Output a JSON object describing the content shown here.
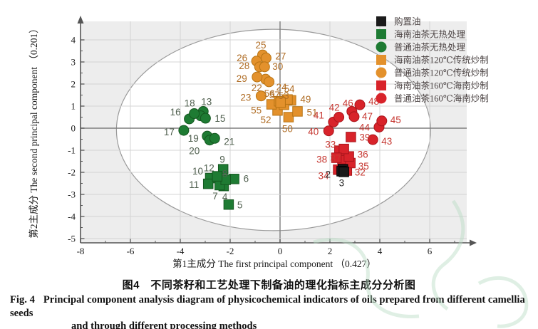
{
  "figure": {
    "caption_zh": "图4　不同茶籽和工艺处理下制备油的理化指标主成分分析图",
    "caption_en": {
      "prefix": "Fig. 4",
      "line1": "Principal component analysis diagram of physicochemical indicators of oils prepared from different camellia seeds",
      "line2": "and through different processing methods"
    }
  },
  "chart_data": {
    "type": "scatter",
    "title": "",
    "xlabel": "第1主成分 The first principal component （0.427）",
    "ylabel": "第2主成分 The second principal component （0.201）",
    "xlim": [
      -8,
      7.7
    ],
    "ylim": [
      -5.2,
      4.9
    ],
    "x_major_ticks": [
      -8,
      -6,
      -4,
      -2,
      0,
      2,
      4,
      6
    ],
    "x_minor_ticks": [
      -7,
      -5,
      -3,
      -1,
      1,
      3,
      5,
      7
    ],
    "y_major_ticks": [
      4,
      3,
      2,
      1,
      0,
      -1,
      -2,
      -3,
      -4,
      -5
    ],
    "grid": true,
    "legend_position": "top-right-inside",
    "confidence_ellipse": {
      "cx": -0.26,
      "cy": -0.08,
      "rx": 6.3,
      "ry": 4.56
    },
    "colors": {
      "plot_bg": "#ededed",
      "ellipse_fill": "#ffffff",
      "ellipse_stroke": "#9a9a9a",
      "grid": "#d4d4d4",
      "zero_line": "#7e7e7e",
      "axis": "#555555",
      "tick_label": "#1a1a1a",
      "legend_text": "#4c4444",
      "watermark": "#b9dcc4"
    },
    "series": [
      {
        "name": "购置油",
        "marker": "square",
        "color": "#1b1b1b",
        "edge": "#000000",
        "label_color": "#2a2a2a",
        "points": [
          {
            "id": 1,
            "x": 2.52,
            "y": -1.86,
            "label_hidden": true
          },
          {
            "id": 2,
            "x": 2.47,
            "y": -1.95,
            "dx": -23,
            "dy": 5
          },
          {
            "id": 3,
            "x": 2.56,
            "y": -1.98,
            "dx": -7,
            "dy": 16
          }
        ]
      },
      {
        "name": "海南油茶无热处理",
        "marker": "square",
        "color": "#1e7b33",
        "edge": "#14571f",
        "label_color": "#50604f",
        "points": [
          {
            "id": 4,
            "x": -2.26,
            "y": -2.62,
            "dx": -2,
            "dy": 16
          },
          {
            "id": 5,
            "x": -2.06,
            "y": -3.46,
            "dx": 12,
            "dy": 1
          },
          {
            "id": 6,
            "x": -1.84,
            "y": -2.3,
            "dx": 13,
            "dy": 0
          },
          {
            "id": 7,
            "x": -2.42,
            "y": -2.58,
            "dx": -10,
            "dy": 16
          },
          {
            "id": 8,
            "x": -2.18,
            "y": -2.34,
            "dx": -5,
            "dy": -8
          },
          {
            "id": 9,
            "x": -2.28,
            "y": -1.86,
            "dx": -5,
            "dy": -13
          },
          {
            "id": 10,
            "x": -2.8,
            "y": -2.26,
            "dx": -25,
            "dy": -9
          },
          {
            "id": 11,
            "x": -2.88,
            "y": -2.52,
            "dx": -27,
            "dy": 2
          },
          {
            "id": 12,
            "x": -2.52,
            "y": -2.18,
            "dx": -19,
            "dy": -11
          }
        ]
      },
      {
        "name": "普通油茶无热处理",
        "marker": "circle",
        "color": "#1e7b33",
        "edge": "#14571f",
        "label_color": "#50604f",
        "points": [
          {
            "id": 13,
            "x": -3.08,
            "y": 0.76,
            "dx": -3,
            "dy": -13
          },
          {
            "id": 14,
            "x": -3.18,
            "y": 0.56,
            "label_hidden": true
          },
          {
            "id": 15,
            "x": -2.99,
            "y": 0.45,
            "dx": 13,
            "dy": 1
          },
          {
            "id": 16,
            "x": -3.64,
            "y": 0.42,
            "dx": -27,
            "dy": -9
          },
          {
            "id": 17,
            "x": -3.86,
            "y": -0.1,
            "dx": -28,
            "dy": 3
          },
          {
            "id": 18,
            "x": -3.44,
            "y": 0.66,
            "dx": -14,
            "dy": -14
          },
          {
            "id": 19,
            "x": -2.92,
            "y": -0.36,
            "dx": -27,
            "dy": 4
          },
          {
            "id": 20,
            "x": -2.82,
            "y": -0.54,
            "dx": -29,
            "dy": 16
          },
          {
            "id": 21,
            "x": -2.62,
            "y": -0.46,
            "dx": 13,
            "dy": 5
          }
        ]
      },
      {
        "name": "海南油茶120℃传统炒制",
        "marker": "square",
        "color": "#e3912c",
        "edge": "#b87414",
        "label_color": "#b06e27",
        "points": [
          {
            "id": 49,
            "x": 0.44,
            "y": 1.26,
            "dx": 13,
            "dy": -1
          },
          {
            "id": 50,
            "x": 0.34,
            "y": 0.5,
            "dx": -9,
            "dy": 17
          },
          {
            "id": 51,
            "x": 0.7,
            "y": 0.76,
            "dx": 13,
            "dy": 2
          },
          {
            "id": 52,
            "x": -0.1,
            "y": 0.8,
            "dx": -24,
            "dy": 14
          },
          {
            "id": 53,
            "x": 0.16,
            "y": 1.06,
            "dx": -8,
            "dy": -12
          },
          {
            "id": 54,
            "x": 0.3,
            "y": 1.3,
            "dx": -5,
            "dy": -14
          },
          {
            "id": 55,
            "x": -0.34,
            "y": 1.08,
            "dx": -29,
            "dy": 9
          },
          {
            "id": 56,
            "x": -0.04,
            "y": 1.22,
            "dx": -21,
            "dy": -10
          },
          {
            "id": 57,
            "x": 0.02,
            "y": 1.16,
            "dx": -16,
            "dy": -10
          }
        ]
      },
      {
        "name": "普通油茶120℃传统炒制",
        "marker": "circle",
        "color": "#e3912c",
        "edge": "#b87414",
        "label_color": "#b06e27",
        "points": [
          {
            "id": 22,
            "x": -0.58,
            "y": 2.22,
            "dx": -20,
            "dy": 13
          },
          {
            "id": 23,
            "x": -0.76,
            "y": 1.46,
            "dx": -29,
            "dy": 3
          },
          {
            "id": 24,
            "x": -0.44,
            "y": 2.1,
            "dx": 10,
            "dy": 8
          },
          {
            "id": 25,
            "x": -0.7,
            "y": 3.32,
            "dx": -10,
            "dy": -13
          },
          {
            "id": 26,
            "x": -0.94,
            "y": 3.04,
            "dx": -28,
            "dy": -4
          },
          {
            "id": 27,
            "x": -0.56,
            "y": 3.18,
            "dx": 13,
            "dy": -2
          },
          {
            "id": 28,
            "x": -0.82,
            "y": 2.78,
            "dx": -29,
            "dy": -1
          },
          {
            "id": 29,
            "x": -0.92,
            "y": 2.32,
            "dx": -29,
            "dy": 3
          },
          {
            "id": 30,
            "x": -0.62,
            "y": 2.78,
            "dx": 11,
            "dy": 0
          }
        ]
      },
      {
        "name": "海南油茶160℃海南炒制",
        "marker": "square",
        "color": "#d8232a",
        "edge": "#a9161c",
        "label_color": "#c63832",
        "points": [
          {
            "id": 31,
            "x": 2.5,
            "y": -1.4,
            "label_hidden": true
          },
          {
            "id": 32,
            "x": 2.68,
            "y": -1.92,
            "dx": 11,
            "dy": 3
          },
          {
            "id": 33,
            "x": 2.38,
            "y": -1.02,
            "dx": -20,
            "dy": -8
          },
          {
            "id": 34,
            "x": 2.33,
            "y": -1.88,
            "dx": -28,
            "dy": 9
          },
          {
            "id": 35,
            "x": 2.82,
            "y": -1.58,
            "dx": 11,
            "dy": 5
          },
          {
            "id": 36,
            "x": 2.76,
            "y": -1.28,
            "dx": 12,
            "dy": -2
          },
          {
            "id": 37,
            "x": 2.56,
            "y": -0.94,
            "dx": -19,
            "dy": 14
          },
          {
            "id": 38,
            "x": 2.26,
            "y": -1.34,
            "dx": -28,
            "dy": 3
          },
          {
            "id": 39,
            "x": 2.84,
            "y": -0.4,
            "dx": 12,
            "dy": 1
          }
        ]
      },
      {
        "name": "普通油茶160℃海南炒制",
        "marker": "circle",
        "color": "#d8232a",
        "edge": "#a9161c",
        "label_color": "#c63832",
        "points": [
          {
            "id": 40,
            "x": 1.95,
            "y": -0.12,
            "dx": -29,
            "dy": 2
          },
          {
            "id": 41,
            "x": 2.14,
            "y": 0.28,
            "dx": -28,
            "dy": -9
          },
          {
            "id": 42,
            "x": 2.36,
            "y": 0.5,
            "dx": -14,
            "dy": -13
          },
          {
            "id": 43,
            "x": 3.72,
            "y": -0.52,
            "dx": 12,
            "dy": 3
          },
          {
            "id": 44,
            "x": 3.97,
            "y": 0.05,
            "dx": -28,
            "dy": 1
          },
          {
            "id": 45,
            "x": 4.08,
            "y": 0.33,
            "dx": 12,
            "dy": -1
          },
          {
            "id": 46,
            "x": 2.88,
            "y": 0.76,
            "dx": -13,
            "dy": -11
          },
          {
            "id": 47,
            "x": 2.97,
            "y": 0.52,
            "dx": 11,
            "dy": 0
          },
          {
            "id": 48,
            "x": 3.2,
            "y": 1.06,
            "dx": 12,
            "dy": -4
          }
        ]
      }
    ]
  }
}
